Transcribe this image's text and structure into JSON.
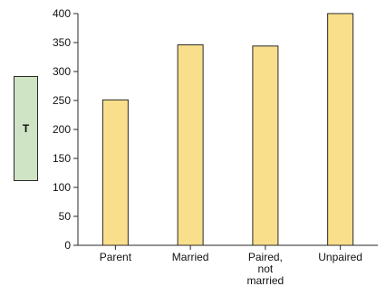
{
  "chart_data": {
    "type": "bar",
    "title": "",
    "xlabel": "",
    "ylabel": "T",
    "categories": [
      [
        "Parent"
      ],
      [
        "Married"
      ],
      [
        "Paired,",
        "not",
        "married"
      ],
      [
        "Unpaired"
      ]
    ],
    "values": [
      251,
      346,
      344,
      400
    ],
    "ylim": [
      0,
      400
    ],
    "yticks": [
      0,
      50,
      100,
      150,
      200,
      250,
      300,
      350,
      400
    ],
    "grid": false,
    "colors": {
      "bar_fill": "#f9df8c",
      "bar_stroke": "#2a2a2a",
      "ylabel_box_fill": "#cfe4c4",
      "axis": "#2a2a2a"
    }
  }
}
